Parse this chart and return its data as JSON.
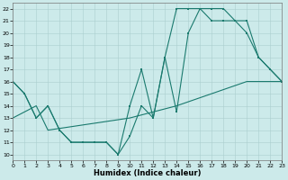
{
  "xlabel": "Humidex (Indice chaleur)",
  "line_color": "#1a7a6e",
  "background_color": "#cceaea",
  "grid_color": "#aacfcf",
  "xlim": [
    0,
    23
  ],
  "ylim": [
    9.5,
    22.5
  ],
  "xticks": [
    0,
    1,
    2,
    3,
    4,
    5,
    6,
    7,
    8,
    9,
    10,
    11,
    12,
    13,
    14,
    15,
    16,
    17,
    18,
    19,
    20,
    21,
    22,
    23
  ],
  "yticks": [
    10,
    11,
    12,
    13,
    14,
    15,
    16,
    17,
    18,
    19,
    20,
    21,
    22
  ],
  "line1_x": [
    0,
    1,
    2,
    3,
    4,
    5,
    6,
    7,
    8,
    9,
    10,
    11,
    12,
    13,
    14,
    15,
    16,
    17,
    18,
    19,
    20,
    21,
    22,
    23
  ],
  "line1_y": [
    16,
    15,
    13,
    14,
    12,
    11,
    11,
    11,
    11,
    10,
    11.5,
    14,
    13,
    18,
    13.5,
    20,
    22,
    22,
    22,
    21,
    20,
    18,
    17,
    16
  ],
  "line2_x": [
    0,
    1,
    2,
    3,
    4,
    5,
    6,
    7,
    8,
    9,
    10,
    11,
    12,
    13,
    14,
    15,
    16,
    17,
    18,
    19,
    20,
    21,
    22,
    23
  ],
  "line2_y": [
    16,
    15,
    13,
    14,
    12,
    11,
    11,
    11,
    11,
    10,
    14,
    17,
    13,
    18,
    22,
    22,
    22,
    21,
    21,
    21,
    21,
    18,
    17,
    16
  ],
  "line3_x": [
    0,
    2,
    3,
    10,
    14,
    17,
    20,
    23
  ],
  "line3_y": [
    13,
    14,
    12,
    13,
    14,
    15,
    16,
    16
  ]
}
